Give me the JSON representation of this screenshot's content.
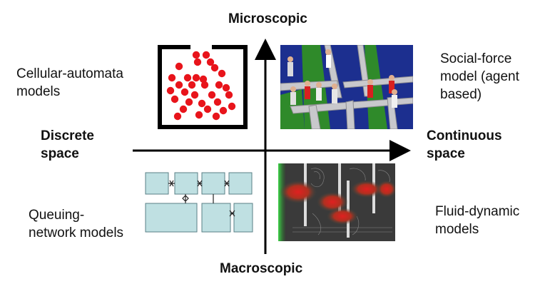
{
  "axes": {
    "top": "Microscopic",
    "bottom": "Macroscopic",
    "left": "Discrete\nspace",
    "right": "Continuous\nspace"
  },
  "quadrants": {
    "top_left": "Cellular-automata\nmodels",
    "top_right": "Social-force\nmodel (agent\nbased)",
    "bottom_left": "Queuing-\nnetwork models",
    "bottom_right": "Fluid-dynamic\nmodels"
  },
  "colors": {
    "axis": "#000000",
    "cell_dot": "#e8141b",
    "queue_box": "#bfe0e2",
    "queue_border": "#5a7f86",
    "floor_blue": "#1c2f8f",
    "floor_green": "#2f8a2a",
    "fluid_bg": "#3a3a3a",
    "fluid_red": "#d81e1e",
    "fluid_green": "#3fd84a"
  }
}
